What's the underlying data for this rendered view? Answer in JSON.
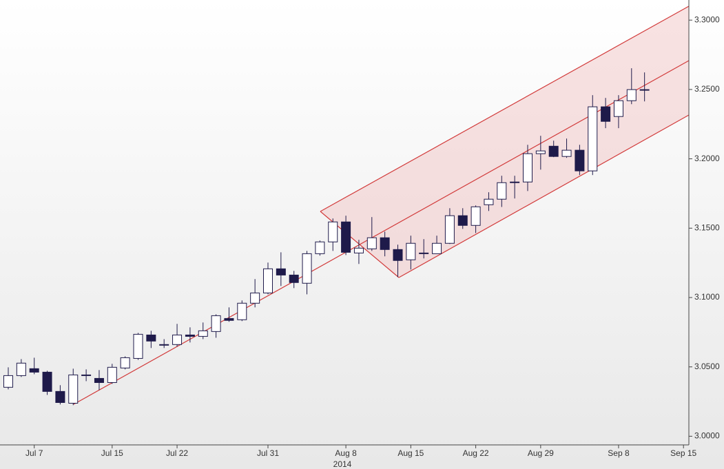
{
  "chart_data": {
    "type": "candlestick",
    "categories": [
      null,
      null,
      "Jul 7",
      null,
      null,
      null,
      null,
      null,
      "Jul 15",
      null,
      null,
      null,
      null,
      "Jul 22",
      null,
      null,
      null,
      null,
      null,
      null,
      "Jul 31",
      null,
      null,
      null,
      null,
      null,
      "Aug 8",
      null,
      null,
      null,
      null,
      "Aug 15",
      null,
      null,
      null,
      null,
      "Aug 22",
      null,
      null,
      null,
      null,
      "Aug 29",
      null,
      null,
      null,
      null,
      null,
      "Sep 8",
      null,
      null,
      null,
      null,
      "Sep 15"
    ],
    "x_sublabel": "2014",
    "open": [
      3.0353,
      3.0437,
      3.0487,
      3.0462,
      3.0323,
      3.0238,
      3.0437,
      3.0417,
      3.0387,
      3.0492,
      3.0561,
      3.073,
      3.0661,
      3.0661,
      3.073,
      3.072,
      3.0755,
      3.0849,
      3.084,
      3.0959,
      3.1033,
      3.1207,
      3.1162,
      3.1103,
      3.1316,
      3.1401,
      3.1545,
      3.1321,
      3.1351,
      3.1431,
      3.1346,
      3.1272,
      3.1321,
      3.1316,
      3.1391,
      3.159,
      3.152,
      3.1669,
      3.1709,
      3.1828,
      3.1833,
      3.2037,
      3.2091,
      3.2017,
      3.2062,
      3.1913,
      3.2375,
      3.2305,
      3.2419,
      3.2499,
      null,
      null,
      null
    ],
    "high": [
      3.0497,
      3.0556,
      3.0566,
      3.0472,
      3.0368,
      3.0487,
      3.0482,
      3.0477,
      3.0522,
      3.0576,
      3.0745,
      3.076,
      3.07,
      3.081,
      3.0785,
      3.082,
      3.0879,
      3.0929,
      3.0979,
      3.1133,
      3.1252,
      3.1326,
      3.1192,
      3.1336,
      3.1411,
      3.157,
      3.159,
      3.1416,
      3.158,
      3.1475,
      3.1381,
      3.1446,
      3.1421,
      3.1446,
      3.1644,
      3.1644,
      3.1664,
      3.1759,
      3.1878,
      3.1878,
      3.2101,
      3.2166,
      3.2131,
      3.2146,
      3.2101,
      3.2459,
      3.2439,
      3.2459,
      3.2653,
      3.2623,
      null,
      null,
      null
    ],
    "low": [
      3.0338,
      3.0427,
      3.0447,
      3.0298,
      3.0229,
      3.0224,
      3.0397,
      3.0333,
      3.0378,
      3.0482,
      3.0551,
      3.0636,
      3.0636,
      3.0646,
      3.0676,
      3.07,
      3.071,
      3.0825,
      3.083,
      3.0929,
      3.1023,
      3.1083,
      3.1068,
      3.1023,
      3.1302,
      3.1336,
      3.1306,
      3.1242,
      3.1336,
      3.1297,
      3.1148,
      3.1202,
      3.1282,
      3.1316,
      3.1386,
      3.1495,
      3.1465,
      3.1624,
      3.1653,
      3.1714,
      3.1768,
      3.1922,
      3.2012,
      3.2007,
      3.1883,
      3.1883,
      3.2221,
      3.2221,
      3.2394,
      3.2414,
      null,
      null,
      null
    ],
    "close": [
      3.0437,
      3.0527,
      3.0462,
      3.0323,
      3.0243,
      3.0442,
      3.0442,
      3.0387,
      3.0497,
      3.0566,
      3.0735,
      3.0686,
      3.0656,
      3.073,
      3.072,
      3.076,
      3.0869,
      3.0835,
      3.0959,
      3.1033,
      3.1207,
      3.1162,
      3.1108,
      3.1316,
      3.1401,
      3.1545,
      3.1326,
      3.1356,
      3.1431,
      3.1346,
      3.1267,
      3.1391,
      3.1316,
      3.1391,
      3.159,
      3.152,
      3.1654,
      3.1709,
      3.1828,
      3.1833,
      3.2037,
      3.2057,
      3.2017,
      3.2062,
      3.1913,
      3.2375,
      3.227,
      3.2419,
      3.2499,
      3.2499,
      null,
      null,
      null
    ],
    "up_color": "#ffffff",
    "down_color": "#1e1a4a",
    "line_color": "#1e1a4a",
    "ylim": [
      2.994,
      3.3145
    ],
    "yticks": [
      {
        "value": 3.0,
        "label": "3.0000"
      },
      {
        "value": 3.05,
        "label": "3.0500"
      },
      {
        "value": 3.1,
        "label": "3.1000"
      },
      {
        "value": 3.15,
        "label": "3.1500"
      },
      {
        "value": 3.2,
        "label": "3.2000"
      },
      {
        "value": 3.25,
        "label": "3.2500"
      },
      {
        "value": 3.3,
        "label": "3.3000"
      }
    ]
  }
}
